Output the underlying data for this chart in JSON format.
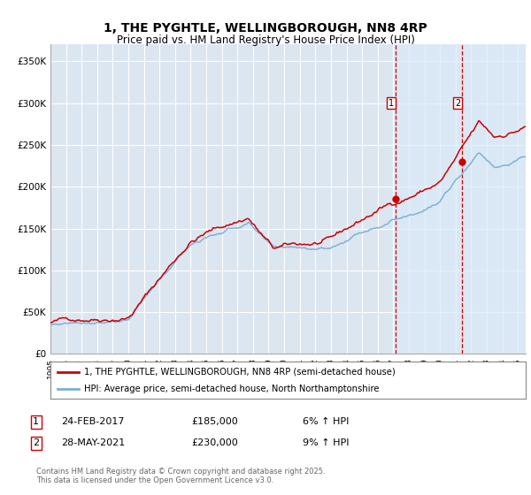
{
  "title": "1, THE PYGHTLE, WELLINGBOROUGH, NN8 4RP",
  "subtitle": "Price paid vs. HM Land Registry's House Price Index (HPI)",
  "legend_line1": "1, THE PYGHTLE, WELLINGBOROUGH, NN8 4RP (semi-detached house)",
  "legend_line2": "HPI: Average price, semi-detached house, North Northamptonshire",
  "annotation1_date": "24-FEB-2017",
  "annotation1_price": "£185,000",
  "annotation1_hpi": "6% ↑ HPI",
  "annotation1_year": 2017.13,
  "annotation1_value": 185000,
  "annotation2_date": "28-MAY-2021",
  "annotation2_price": "£230,000",
  "annotation2_hpi": "9% ↑ HPI",
  "annotation2_year": 2021.41,
  "annotation2_value": 230000,
  "ylabel_ticks": [
    "£0",
    "£50K",
    "£100K",
    "£150K",
    "£200K",
    "£250K",
    "£300K",
    "£350K"
  ],
  "ytick_values": [
    0,
    50000,
    100000,
    150000,
    200000,
    250000,
    300000,
    350000
  ],
  "ylim": [
    0,
    370000
  ],
  "xlim_start": 1995,
  "xlim_end": 2025.5,
  "background_color": "#ffffff",
  "plot_bg_color": "#dce6f1",
  "grid_color": "#ffffff",
  "red_line_color": "#cc0000",
  "blue_line_color": "#7aafd4",
  "shade_color": "#daeaf7",
  "marker_color": "#cc0000",
  "vline_color": "#cc0000",
  "footer_text": "Contains HM Land Registry data © Crown copyright and database right 2025.\nThis data is licensed under the Open Government Licence v3.0.",
  "title_fontsize": 10,
  "subtitle_fontsize": 8.5
}
